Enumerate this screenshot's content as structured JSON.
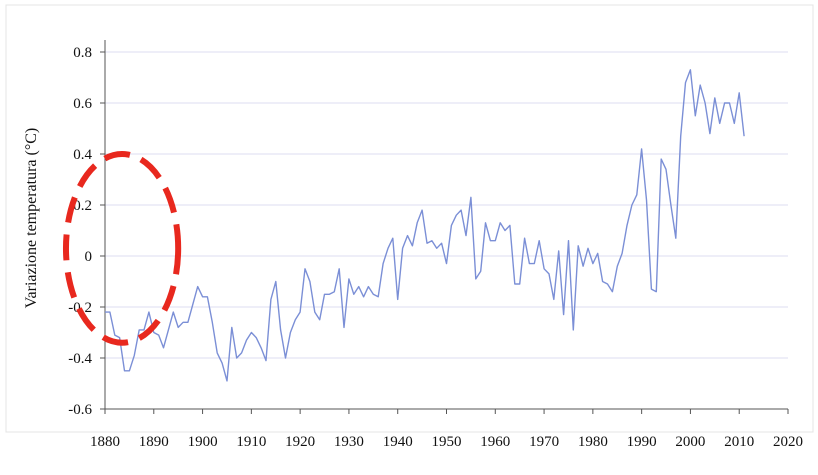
{
  "chart_data": {
    "type": "line",
    "title": "",
    "xlabel": "",
    "ylabel": "Variazione temperatura (°C)",
    "xlim": [
      1880,
      2020
    ],
    "ylim": [
      -0.6,
      0.8
    ],
    "x_ticks": [
      "1880",
      "1890",
      "1900",
      "1910",
      "1920",
      "1930",
      "1940",
      "1950",
      "1960",
      "1970",
      "1980",
      "1990",
      "2000",
      "2010",
      "2020"
    ],
    "y_ticks": [
      "0.8",
      "0.6",
      "0.4",
      "0.2",
      "0",
      "-0.2",
      "-0.4",
      "-0.6"
    ],
    "grid": "horizontal",
    "series_color": "#7b8fd6",
    "annotation_color": "#e8281e",
    "annotation": "dashed-ellipse",
    "annotation_center": [
      1883.5,
      0.03
    ],
    "annotation_radius": [
      11.5,
      0.37
    ],
    "series": [
      {
        "x": [
          1880,
          1881,
          1882,
          1883,
          1884,
          1885,
          1886,
          1887,
          1888,
          1889,
          1890,
          1891,
          1892,
          1893,
          1894,
          1895,
          1896,
          1897,
          1898,
          1899,
          1900,
          1901,
          1902,
          1903,
          1904,
          1905,
          1906,
          1907,
          1908,
          1909,
          1910,
          1911,
          1912,
          1913,
          1914,
          1915,
          1916,
          1917,
          1918,
          1919,
          1920,
          1921,
          1922,
          1923,
          1924,
          1925,
          1926,
          1927,
          1928,
          1929,
          1930,
          1931,
          1932,
          1933,
          1934,
          1935,
          1936,
          1937,
          1938,
          1939,
          1940,
          1941,
          1942,
          1943,
          1944,
          1945,
          1946,
          1947,
          1948,
          1949,
          1950,
          1951,
          1952,
          1953,
          1954,
          1955,
          1956,
          1957,
          1958,
          1959,
          1960,
          1961,
          1962,
          1963,
          1964,
          1965,
          1966,
          1967,
          1968,
          1969,
          1970,
          1971,
          1972,
          1973,
          1974,
          1975,
          1976,
          1977,
          1978,
          1979,
          1980,
          1981,
          1982,
          1983,
          1984,
          1985,
          1986,
          1987,
          1988,
          1989,
          1990,
          1991,
          1992,
          1993,
          1994,
          1995,
          1996,
          1997,
          1998,
          1999,
          2000,
          2001,
          2002,
          2003,
          2004,
          2005,
          2006,
          2007,
          2008,
          2009,
          2010,
          2011
        ],
        "values": [
          -0.22,
          -0.22,
          -0.31,
          -0.32,
          -0.45,
          -0.45,
          -0.39,
          -0.29,
          -0.29,
          -0.22,
          -0.3,
          -0.31,
          -0.36,
          -0.29,
          -0.22,
          -0.28,
          -0.26,
          -0.26,
          -0.19,
          -0.12,
          -0.16,
          -0.16,
          -0.26,
          -0.38,
          -0.42,
          -0.49,
          -0.28,
          -0.4,
          -0.38,
          -0.33,
          -0.3,
          -0.32,
          -0.36,
          -0.41,
          -0.17,
          -0.1,
          -0.29,
          -0.4,
          -0.3,
          -0.25,
          -0.22,
          -0.05,
          -0.1,
          -0.22,
          -0.25,
          -0.15,
          -0.15,
          -0.14,
          -0.05,
          -0.28,
          -0.09,
          -0.15,
          -0.12,
          -0.16,
          -0.12,
          -0.15,
          -0.16,
          -0.03,
          0.03,
          0.07,
          -0.17,
          0.03,
          0.08,
          0.04,
          0.13,
          0.18,
          0.05,
          0.06,
          0.03,
          0.05,
          -0.03,
          0.12,
          0.16,
          0.18,
          0.08,
          0.23,
          -0.09,
          -0.06,
          0.13,
          0.06,
          0.06,
          0.13,
          0.1,
          0.12,
          -0.11,
          -0.11,
          0.07,
          -0.03,
          -0.03,
          0.06,
          -0.05,
          -0.07,
          -0.17,
          0.02,
          -0.23,
          0.06,
          -0.29,
          0.04,
          -0.04,
          0.03,
          -0.03,
          0.01,
          -0.1,
          -0.11,
          -0.14,
          -0.04,
          0.01,
          0.12,
          0.2,
          0.24,
          0.42,
          0.22,
          -0.13,
          -0.14,
          0.38,
          0.34,
          0.2,
          0.07,
          0.47,
          0.68,
          0.73,
          0.55,
          0.67,
          0.6,
          0.48,
          0.62,
          0.52,
          0.6,
          0.6,
          0.52,
          0.64,
          0.47
        ]
      }
    ]
  }
}
